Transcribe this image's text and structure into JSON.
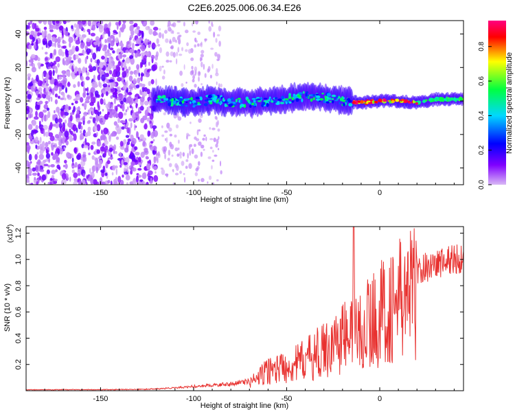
{
  "title": "C2E6.2025.006.06.34.E26",
  "colors": {
    "background": "#ffffff",
    "axis": "#000000",
    "snr_line": "#e8312f",
    "speckle_dark": "#7a14e8",
    "speckle_light": "#d9b8f5"
  },
  "chart_data": [
    {
      "type": "heatmap",
      "xlabel": "Height of straight line (km)",
      "ylabel": "Frequency (Hz)",
      "xlim": [
        -190,
        45
      ],
      "ylim": [
        -50,
        48
      ],
      "x_ticks": [
        -150,
        -100,
        -50,
        0
      ],
      "y_ticks": [
        -40,
        -20,
        0,
        20,
        40
      ],
      "colorbar": {
        "label": "Normalized spectral amplitude",
        "range": [
          0.0,
          0.95
        ],
        "ticks": [
          "0.0",
          "0.2",
          "0.4",
          "0.6",
          "0.8"
        ],
        "colormap": [
          "#d9b8f5",
          "#8000ff",
          "#0000ff",
          "#00d8ff",
          "#00ff40",
          "#ffff00",
          "#ff0000",
          "#ff0080"
        ]
      },
      "description_points": {
        "noise_region_x": [
          -190,
          -120
        ],
        "fading_noise_x": [
          -120,
          -85
        ],
        "signal_band_center": [
          [
            -120,
            1
          ],
          [
            -110,
            0
          ],
          [
            -100,
            -1
          ],
          [
            -90,
            1
          ],
          [
            -80,
            -1
          ],
          [
            -70,
            -1
          ],
          [
            -60,
            0
          ],
          [
            -50,
            1
          ],
          [
            -40,
            3
          ],
          [
            -30,
            2
          ],
          [
            -20,
            0
          ],
          [
            -10,
            -1
          ],
          [
            0,
            0
          ],
          [
            10,
            0
          ],
          [
            20,
            -1
          ],
          [
            30,
            1
          ],
          [
            45,
            1
          ]
        ],
        "peak_amplitude_x": [
          -15,
          20
        ]
      }
    },
    {
      "type": "line",
      "xlabel": "Height of straight line (km)",
      "ylabel": "SNR (10 * v/v)",
      "y_scale_label": "(x10",
      "y_scale_exponent": "4",
      "y_scale_suffix": ")",
      "xlim": [
        -190,
        45
      ],
      "ylim": [
        0,
        1.25
      ],
      "x_ticks": [
        -150,
        -100,
        -50,
        0
      ],
      "y_ticks": [
        "0.2",
        "0.4",
        "0.6",
        "0.8",
        "1.0",
        "1.2"
      ],
      "series": [
        {
          "x": [
            -190,
            -170,
            -150,
            -130,
            -120,
            -110,
            -100,
            -90,
            -80,
            -70,
            -65,
            -60,
            -55,
            -50,
            -45,
            -40,
            -35,
            -30,
            -25,
            -20,
            -15,
            -14,
            -13,
            -10,
            -5,
            0,
            5,
            10,
            15,
            20,
            25,
            30,
            35,
            40,
            45
          ],
          "y": [
            0.005,
            0.006,
            0.006,
            0.008,
            0.012,
            0.02,
            0.03,
            0.04,
            0.05,
            0.07,
            0.12,
            0.18,
            0.2,
            0.22,
            0.24,
            0.28,
            0.32,
            0.36,
            0.42,
            0.48,
            0.5,
            1.25,
            0.5,
            0.55,
            0.62,
            0.68,
            0.74,
            0.8,
            0.86,
            0.9,
            0.94,
            0.96,
            0.98,
            1.0,
            1.0
          ]
        }
      ]
    }
  ]
}
